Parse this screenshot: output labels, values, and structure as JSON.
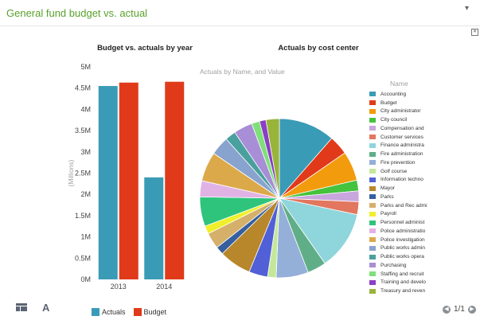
{
  "header": {
    "title": "General fund budget vs. actual",
    "menu_icon": "chevron-down-icon"
  },
  "toolbar": {
    "table_icon": "table-icon",
    "font_icon_label": "A"
  },
  "pager": {
    "text": "1/1"
  },
  "chart_data": [
    {
      "type": "bar",
      "title": "Budget vs. actuals by year",
      "ylabel": "(Millions)",
      "categories": [
        "2013",
        "2014"
      ],
      "series": [
        {
          "name": "Actuals",
          "color": "#3a9bb6",
          "values": [
            4.55,
            2.4
          ]
        },
        {
          "name": "Budget",
          "color": "#e03a1a",
          "values": [
            4.63,
            4.65
          ]
        }
      ],
      "ylim": [
        0,
        5
      ],
      "yticks": [
        0,
        0.5,
        1,
        1.5,
        2,
        2.5,
        3,
        3.5,
        4,
        4.5,
        5
      ],
      "ytick_labels": [
        "0M",
        "0.5M",
        "1M",
        "1.5M",
        "2M",
        "2.5M",
        "3M",
        "3.5M",
        "4M",
        "4.5M",
        "5M"
      ],
      "legend": "bottom"
    },
    {
      "type": "pie",
      "title": "Actuals by cost center",
      "subtitle": "Actuals by Name, and Value",
      "legend_title": "Name",
      "legend": "right",
      "slices": [
        {
          "label": "Accounting",
          "color": "#3a9bb6",
          "value": 10.5
        },
        {
          "label": "Budget",
          "color": "#e03a1a",
          "value": 3.6
        },
        {
          "label": "City administrator",
          "color": "#f29b0c",
          "value": 5.5
        },
        {
          "label": "City council",
          "color": "#45c23e",
          "value": 2.0
        },
        {
          "label": "Compensation and",
          "color": "#c9a6de",
          "value": 2.0
        },
        {
          "label": "Customer services",
          "color": "#e2765e",
          "value": 2.4
        },
        {
          "label": "Finance administra",
          "color": "#8fd5dc",
          "value": 11.0
        },
        {
          "label": "Fire administration",
          "color": "#5fae87",
          "value": 3.5
        },
        {
          "label": "Fire prevention",
          "color": "#94afd8",
          "value": 6.0
        },
        {
          "label": "Golf course",
          "color": "#c4e89a",
          "value": 1.6
        },
        {
          "label": "Information techno",
          "color": "#5160d6",
          "value": 3.5
        },
        {
          "label": "Mayor",
          "color": "#b8862b",
          "value": 6.0
        },
        {
          "label": "Parks",
          "color": "#355f9f",
          "value": 1.5
        },
        {
          "label": "Parks and Rec admi",
          "color": "#d4b06a",
          "value": 3.0
        },
        {
          "label": "Payroll",
          "color": "#efef2c",
          "value": 1.5
        },
        {
          "label": "Personnel administ",
          "color": "#2ec47c",
          "value": 5.5
        },
        {
          "label": "Police administratio",
          "color": "#e1b3e5",
          "value": 3.0
        },
        {
          "label": "Police investigation",
          "color": "#dca94a",
          "value": 5.5
        },
        {
          "label": "Public works admin",
          "color": "#89a3cf",
          "value": 3.5
        },
        {
          "label": "Public works opera",
          "color": "#4aa09e",
          "value": 2.0
        },
        {
          "label": "Purchasing",
          "color": "#a88ed6",
          "value": 3.5
        },
        {
          "label": "Staffing and recruit",
          "color": "#7fe07a",
          "value": 1.5
        },
        {
          "label": "Training and develo",
          "color": "#8a3fc4",
          "value": 1.2
        },
        {
          "label": "Treasury and reven",
          "color": "#99b43a",
          "value": 2.5
        }
      ]
    }
  ]
}
